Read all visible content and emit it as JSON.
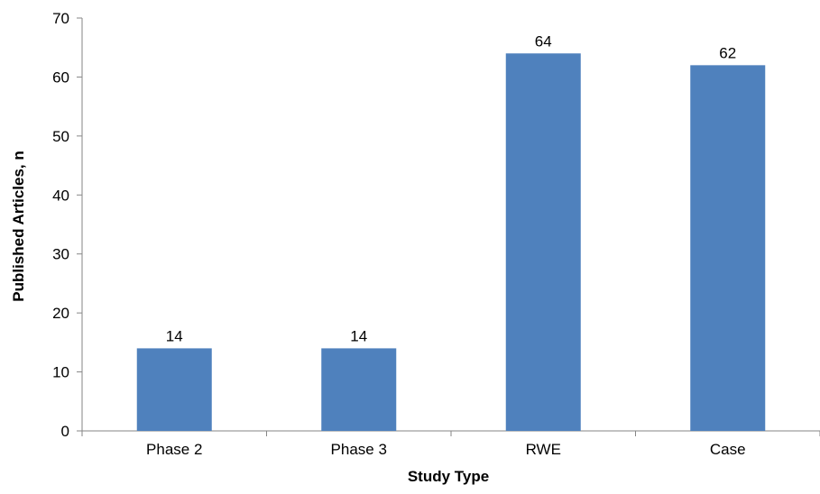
{
  "chart_data": {
    "type": "bar",
    "categories": [
      "Phase 2",
      "Phase 3",
      "RWE",
      "Case"
    ],
    "values": [
      14,
      14,
      64,
      62
    ],
    "data_labels": [
      "14",
      "14",
      "64",
      "62"
    ],
    "title": "",
    "xlabel": "Study Type",
    "ylabel": "Published Articles, n",
    "ylim": [
      0,
      70
    ],
    "yticks": [
      0,
      10,
      20,
      30,
      40,
      50,
      60,
      70
    ],
    "ytick_labels": [
      "0",
      "10",
      "20",
      "30",
      "40",
      "50",
      "60",
      "70"
    ],
    "grid": false,
    "legend": "none",
    "bar_color": "#4F81BD",
    "axis_color": "#868686"
  }
}
